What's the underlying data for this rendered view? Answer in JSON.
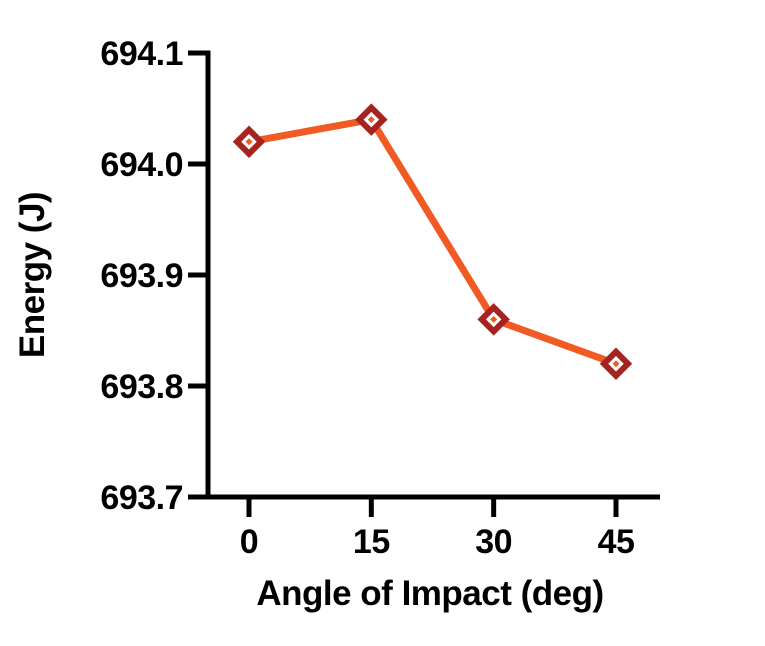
{
  "chart_data": {
    "type": "line",
    "x": [
      0,
      15,
      30,
      45
    ],
    "series": [
      {
        "name": "Energy",
        "values": [
          694.02,
          694.04,
          693.86,
          693.82
        ]
      }
    ],
    "title": "",
    "xlabel": "Angle of Impact (deg)",
    "ylabel": "Energy (J)",
    "xtick_labels": [
      "0",
      "15",
      "30",
      "45"
    ],
    "yticks": [
      693.7,
      693.8,
      693.9,
      694.0,
      694.1
    ],
    "ylim": [
      693.7,
      694.1
    ],
    "grid": false,
    "legend": false,
    "line_color": "#F15A22",
    "marker": "open-diamond",
    "marker_edge_color": "#A52422",
    "marker_fill": "#FFFFFF",
    "marker_center_color": "#F15A22",
    "axis_color": "#000000"
  }
}
